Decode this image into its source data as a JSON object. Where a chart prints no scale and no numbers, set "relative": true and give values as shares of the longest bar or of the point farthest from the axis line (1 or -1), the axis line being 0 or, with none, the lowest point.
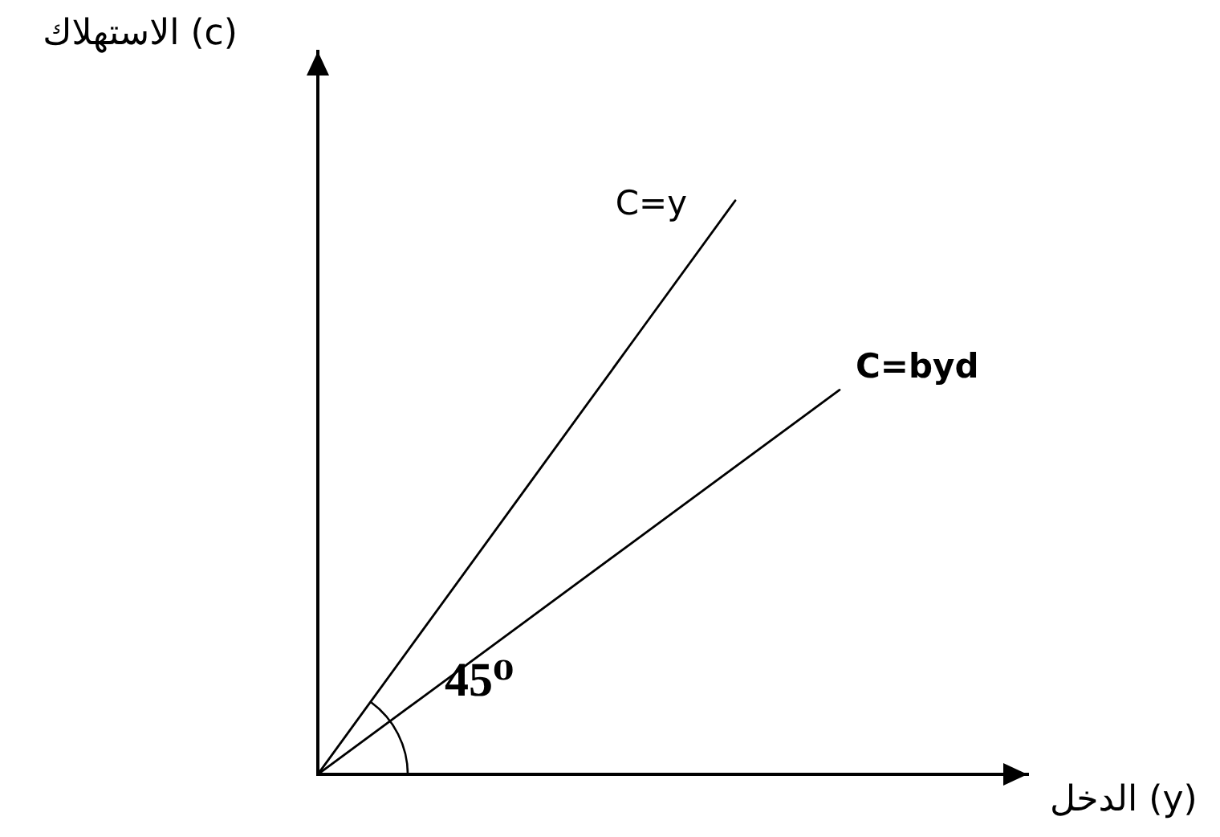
{
  "chart_data": {
    "type": "line",
    "relative": true,
    "xlabel": "الدخل (y)",
    "ylabel": "الاستهلاك (c)",
    "annotations": [
      "45⁰"
    ],
    "legend": false,
    "tick_labels": false,
    "marker": "none",
    "line_style": "solid",
    "categories": [
      null,
      null,
      null,
      null,
      null,
      null
    ],
    "series": [
      {
        "name": "C=y",
        "color": "#000000",
        "values": [
          0,
          0.25,
          0.5,
          0.75,
          1,
          null
        ]
      },
      {
        "name": "C=byd",
        "color": "#000000",
        "values": [
          0,
          0.134,
          0.268,
          0.402,
          0.536,
          0.67
        ]
      }
    ]
  }
}
